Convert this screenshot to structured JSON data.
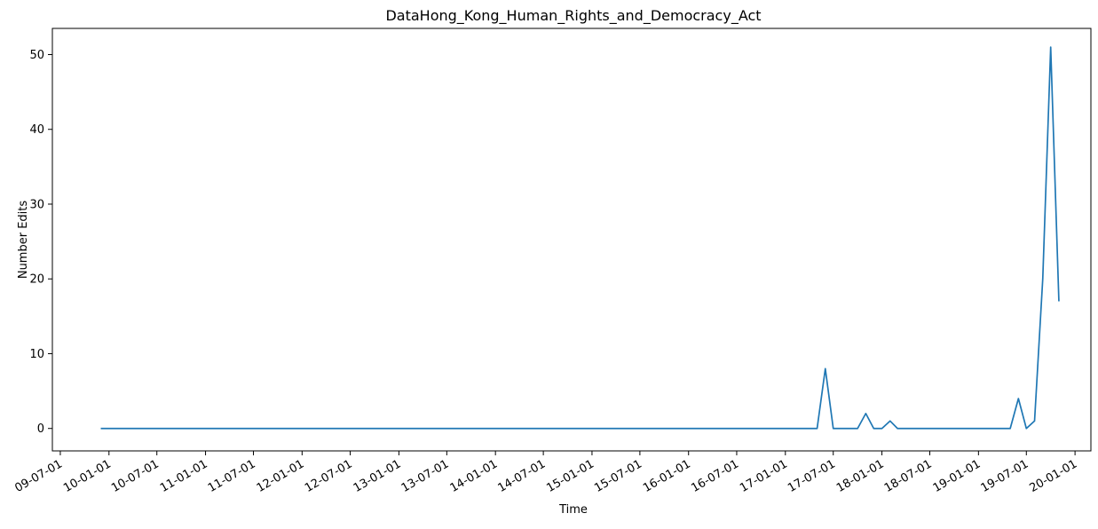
{
  "chart_data": {
    "type": "line",
    "title": "DataHong_Kong_Human_Rights_and_Democracy_Act",
    "xlabel": "Time",
    "ylabel": "Number Edits",
    "ylim": [
      -3,
      53.5
    ],
    "xlim": [
      "2009-06-01",
      "2020-03-01"
    ],
    "grid": false,
    "line_color": "#1f77b4",
    "y_ticks": [
      0,
      10,
      20,
      30,
      40,
      50
    ],
    "x_ticks": [
      {
        "date": "2009-07-01",
        "label": "09-07-01"
      },
      {
        "date": "2010-01-01",
        "label": "10-01-01"
      },
      {
        "date": "2010-07-01",
        "label": "10-07-01"
      },
      {
        "date": "2011-01-01",
        "label": "11-01-01"
      },
      {
        "date": "2011-07-01",
        "label": "11-07-01"
      },
      {
        "date": "2012-01-01",
        "label": "12-01-01"
      },
      {
        "date": "2012-07-01",
        "label": "12-07-01"
      },
      {
        "date": "2013-01-01",
        "label": "13-01-01"
      },
      {
        "date": "2013-07-01",
        "label": "13-07-01"
      },
      {
        "date": "2014-01-01",
        "label": "14-01-01"
      },
      {
        "date": "2014-07-01",
        "label": "14-07-01"
      },
      {
        "date": "2015-01-01",
        "label": "15-01-01"
      },
      {
        "date": "2015-07-01",
        "label": "15-07-01"
      },
      {
        "date": "2016-01-01",
        "label": "16-01-01"
      },
      {
        "date": "2016-07-01",
        "label": "16-07-01"
      },
      {
        "date": "2017-01-01",
        "label": "17-01-01"
      },
      {
        "date": "2017-07-01",
        "label": "17-07-01"
      },
      {
        "date": "2018-01-01",
        "label": "18-01-01"
      },
      {
        "date": "2018-07-01",
        "label": "18-07-01"
      },
      {
        "date": "2019-01-01",
        "label": "19-01-01"
      },
      {
        "date": "2019-07-01",
        "label": "19-07-01"
      },
      {
        "date": "2020-01-01",
        "label": "20-01-01"
      }
    ],
    "series": [
      {
        "x": [
          "2009-12-01",
          "2017-05-01",
          "2017-06-01",
          "2017-07-01",
          "2017-10-01",
          "2017-11-01",
          "2017-12-01",
          "2018-01-01",
          "2018-02-01",
          "2018-03-01",
          "2018-04-01",
          "2019-05-01",
          "2019-06-01",
          "2019-07-01",
          "2019-08-01",
          "2019-09-01",
          "2019-10-01",
          "2019-11-01"
        ],
        "y": [
          0,
          0,
          8,
          0,
          0,
          2,
          0,
          0,
          1,
          0,
          0,
          0,
          4,
          0,
          1,
          20,
          51,
          17
        ]
      }
    ]
  }
}
